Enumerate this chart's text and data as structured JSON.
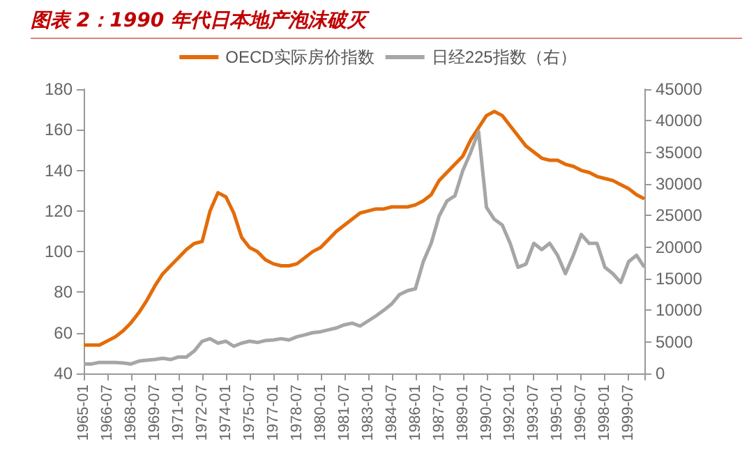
{
  "chart_data": {
    "type": "line",
    "title": "图表 2：1990 年代日本地产泡沫破灭",
    "categories": [
      "1965-01",
      null,
      null,
      "1966-07",
      null,
      null,
      "1968-01",
      null,
      null,
      "1969-07",
      null,
      null,
      "1971-01",
      null,
      null,
      "1972-07",
      null,
      null,
      "1974-01",
      null,
      null,
      "1975-07",
      null,
      null,
      "1977-01",
      null,
      null,
      "1978-07",
      null,
      null,
      "1980-01",
      null,
      null,
      "1981-07",
      null,
      null,
      "1983-01",
      null,
      null,
      "1984-07",
      null,
      null,
      "1986-01",
      null,
      null,
      "1987-07",
      null,
      null,
      "1989-01",
      null,
      null,
      "1990-07",
      null,
      null,
      "1992-01",
      null,
      null,
      "1993-07",
      null,
      null,
      "1995-01",
      null,
      null,
      "1996-07",
      null,
      null,
      "1998-01",
      null,
      null,
      "1999-07",
      null,
      null
    ],
    "series": [
      {
        "name": "OECD实际房价指数",
        "color": "#e36c09",
        "values": [
          54,
          54,
          54,
          56,
          58,
          61,
          65,
          70,
          76,
          83,
          89,
          93,
          97,
          101,
          104,
          105,
          120,
          129,
          127,
          119,
          107,
          102,
          100,
          96,
          94,
          93,
          93,
          94,
          97,
          100,
          102,
          106,
          110,
          113,
          116,
          119,
          120,
          121,
          121,
          122,
          122,
          122,
          123,
          125,
          128,
          135,
          139,
          143,
          147,
          155,
          161,
          167,
          169,
          167,
          162,
          157,
          152,
          149,
          146,
          145,
          145,
          143,
          142,
          140,
          139,
          137,
          136,
          135,
          133,
          131,
          128,
          126
        ]
      },
      {
        "name": "日经225指数（右）",
        "color": "#a6a6a6",
        "axis": "y2",
        "values": [
          1500,
          1500,
          1750,
          1750,
          1750,
          1650,
          1500,
          1950,
          2100,
          2200,
          2400,
          2200,
          2600,
          2600,
          3550,
          5100,
          5500,
          4800,
          5100,
          4300,
          4800,
          5100,
          4900,
          5200,
          5300,
          5500,
          5300,
          5800,
          6100,
          6450,
          6600,
          6900,
          7200,
          7700,
          7950,
          7500,
          8300,
          9100,
          10000,
          11000,
          12500,
          13100,
          13400,
          17700,
          20600,
          24900,
          27300,
          28100,
          32100,
          35000,
          38300,
          26300,
          24400,
          23500,
          20600,
          16800,
          17300,
          20600,
          19600,
          20600,
          18700,
          15800,
          18700,
          22000,
          20600,
          20600,
          16800,
          15800,
          14400,
          17700,
          18700,
          16800
        ]
      }
    ],
    "ylim": [
      40,
      180
    ],
    "yticks": [
      40,
      60,
      80,
      100,
      120,
      140,
      160,
      180
    ],
    "y2lim": [
      0,
      45000
    ],
    "y2ticks": [
      0,
      5000,
      10000,
      15000,
      20000,
      25000,
      30000,
      35000,
      40000,
      45000
    ],
    "legend": "top",
    "grid": false,
    "marker": "none",
    "line_style": "solid"
  }
}
